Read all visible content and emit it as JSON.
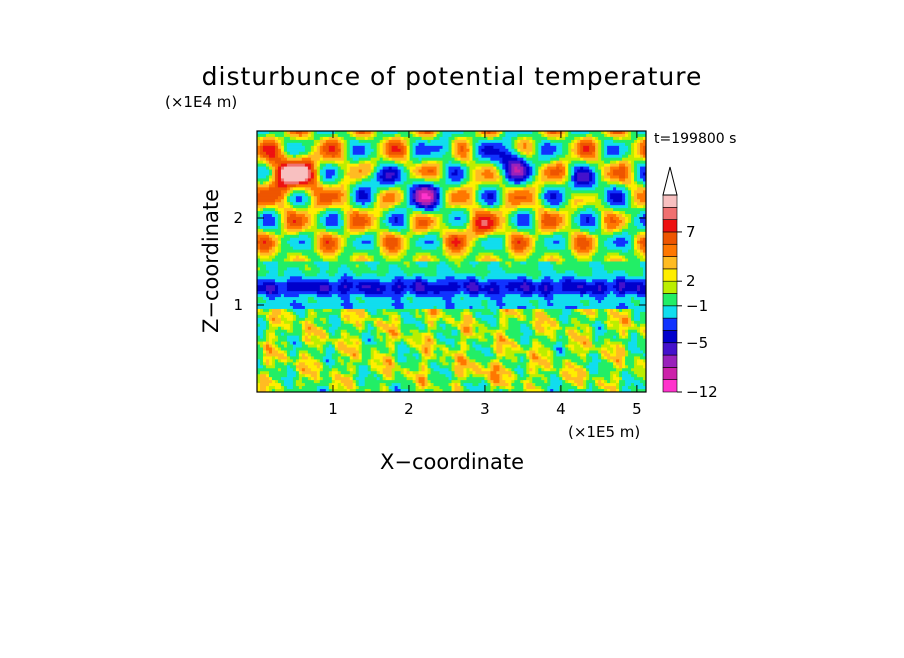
{
  "chart_data": {
    "type": "heatmap",
    "title": "disturbunce of potential temperature",
    "xlabel": "X−coordinate",
    "ylabel": "Z−coordinate",
    "x_unit": "(×1E5 m)",
    "y_unit": "(×1E4 m)",
    "time_label": "t=199800 s",
    "xlim": [
      0,
      5.12
    ],
    "ylim": [
      0,
      3.0
    ],
    "x_ticks": [
      {
        "value": 1,
        "label": "1"
      },
      {
        "value": 2,
        "label": "2"
      },
      {
        "value": 3,
        "label": "3"
      },
      {
        "value": 4,
        "label": "4"
      },
      {
        "value": 5,
        "label": "5"
      }
    ],
    "y_ticks": [
      {
        "value": 1,
        "label": "1"
      },
      {
        "value": 2,
        "label": "2"
      }
    ],
    "colorbar": {
      "bins": [
        {
          "color": "#ff33cc"
        },
        {
          "color": "#cc22aa"
        },
        {
          "color": "#9922bb"
        },
        {
          "color": "#4411cc"
        },
        {
          "color": "#0000cc"
        },
        {
          "color": "#1133ff"
        },
        {
          "color": "#11ddee"
        },
        {
          "color": "#22ee66"
        },
        {
          "color": "#bbee00"
        },
        {
          "color": "#ffee00"
        },
        {
          "color": "#ffbb22"
        },
        {
          "color": "#ff7700"
        },
        {
          "color": "#ee5500"
        },
        {
          "color": "#ee1111"
        },
        {
          "color": "#f07070"
        },
        {
          "color": "#f8c0c0"
        }
      ],
      "labels": [
        {
          "bin": 0,
          "label": "−12"
        },
        {
          "bin": 4,
          "label": "−5"
        },
        {
          "bin": 7,
          "label": "−1"
        },
        {
          "bin": 9,
          "label": "2"
        },
        {
          "bin": 13,
          "label": "7"
        }
      ]
    }
  }
}
